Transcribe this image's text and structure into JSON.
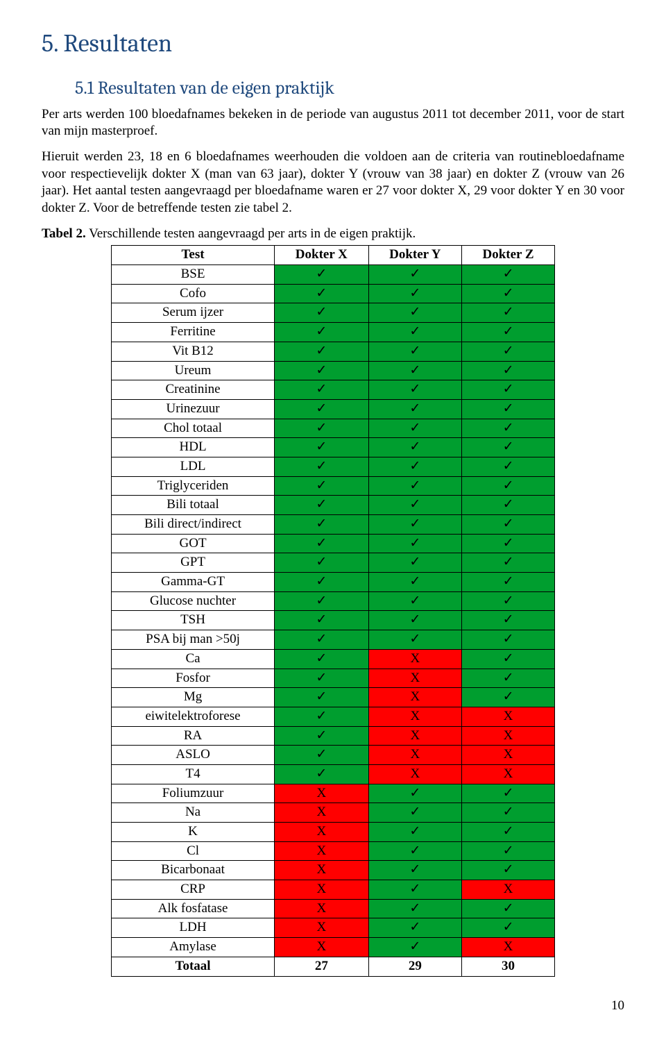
{
  "section": {
    "title": "5. Resultaten"
  },
  "subsection": {
    "title": "5.1 Resultaten van de eigen praktijk"
  },
  "para1": "Per arts werden 100 bloedafnames bekeken in de periode van augustus 2011 tot december 2011, voor de start van mijn masterproef.",
  "para2": "Hieruit werden 23, 18 en 6 bloedafnames weerhouden die voldoen aan de criteria van routinebloedafname voor respectievelijk dokter X (man van 63 jaar), dokter Y (vrouw van 38 jaar) en dokter Z (vrouw van 26 jaar). Het aantal testen aangevraagd per bloedafname waren er 27 voor dokter X, 29 voor dokter Y en 30 voor dokter Z. Voor de betreffende testen zie tabel 2.",
  "caption": {
    "label": "Tabel 2.",
    "text": " Verschillende testen aangevraagd per arts in de eigen praktijk."
  },
  "table": {
    "headers": [
      "Test",
      "Dokter X",
      "Dokter Y",
      "Dokter Z"
    ],
    "ok_color": "#009e2f",
    "bad_color": "#ff0000",
    "ok_mark": "✓",
    "bad_mark": "X",
    "rows": [
      {
        "test": "BSE",
        "x": "ok",
        "y": "ok",
        "z": "ok"
      },
      {
        "test": "Cofo",
        "x": "ok",
        "y": "ok",
        "z": "ok"
      },
      {
        "test": "Serum ijzer",
        "x": "ok",
        "y": "ok",
        "z": "ok"
      },
      {
        "test": "Ferritine",
        "x": "ok",
        "y": "ok",
        "z": "ok"
      },
      {
        "test": "Vit B12",
        "x": "ok",
        "y": "ok",
        "z": "ok"
      },
      {
        "test": "Ureum",
        "x": "ok",
        "y": "ok",
        "z": "ok"
      },
      {
        "test": "Creatinine",
        "x": "ok",
        "y": "ok",
        "z": "ok"
      },
      {
        "test": "Urinezuur",
        "x": "ok",
        "y": "ok",
        "z": "ok"
      },
      {
        "test": "Chol totaal",
        "x": "ok",
        "y": "ok",
        "z": "ok"
      },
      {
        "test": "HDL",
        "x": "ok",
        "y": "ok",
        "z": "ok"
      },
      {
        "test": "LDL",
        "x": "ok",
        "y": "ok",
        "z": "ok"
      },
      {
        "test": "Triglyceriden",
        "x": "ok",
        "y": "ok",
        "z": "ok"
      },
      {
        "test": "Bili totaal",
        "x": "ok",
        "y": "ok",
        "z": "ok"
      },
      {
        "test": "Bili direct/indirect",
        "x": "ok",
        "y": "ok",
        "z": "ok"
      },
      {
        "test": "GOT",
        "x": "ok",
        "y": "ok",
        "z": "ok"
      },
      {
        "test": "GPT",
        "x": "ok",
        "y": "ok",
        "z": "ok"
      },
      {
        "test": "Gamma-GT",
        "x": "ok",
        "y": "ok",
        "z": "ok"
      },
      {
        "test": "Glucose nuchter",
        "x": "ok",
        "y": "ok",
        "z": "ok"
      },
      {
        "test": "TSH",
        "x": "ok",
        "y": "ok",
        "z": "ok"
      },
      {
        "test": "PSA bij man >50j",
        "x": "ok",
        "y": "ok",
        "z": "ok"
      },
      {
        "test": "Ca",
        "x": "ok",
        "y": "bad",
        "z": "ok"
      },
      {
        "test": "Fosfor",
        "x": "ok",
        "y": "bad",
        "z": "ok"
      },
      {
        "test": "Mg",
        "x": "ok",
        "y": "bad",
        "z": "ok"
      },
      {
        "test": "eiwitelektroforese",
        "x": "ok",
        "y": "bad",
        "z": "bad"
      },
      {
        "test": "RA",
        "x": "ok",
        "y": "bad",
        "z": "bad"
      },
      {
        "test": "ASLO",
        "x": "ok",
        "y": "bad",
        "z": "bad"
      },
      {
        "test": "T4",
        "x": "ok",
        "y": "bad",
        "z": "bad"
      },
      {
        "test": "Foliumzuur",
        "x": "bad",
        "y": "ok",
        "z": "ok"
      },
      {
        "test": "Na",
        "x": "bad",
        "y": "ok",
        "z": "ok"
      },
      {
        "test": "K",
        "x": "bad",
        "y": "ok",
        "z": "ok"
      },
      {
        "test": "Cl",
        "x": "bad",
        "y": "ok",
        "z": "ok"
      },
      {
        "test": "Bicarbonaat",
        "x": "bad",
        "y": "ok",
        "z": "ok"
      },
      {
        "test": "CRP",
        "x": "bad",
        "y": "ok",
        "z": "bad"
      },
      {
        "test": "Alk fosfatase",
        "x": "bad",
        "y": "ok",
        "z": "ok"
      },
      {
        "test": "LDH",
        "x": "bad",
        "y": "ok",
        "z": "ok"
      },
      {
        "test": "Amylase",
        "x": "bad",
        "y": "ok",
        "z": "bad"
      }
    ],
    "totals": {
      "label": "Totaal",
      "x": "27",
      "y": "29",
      "z": "30"
    }
  },
  "page_number": "10"
}
